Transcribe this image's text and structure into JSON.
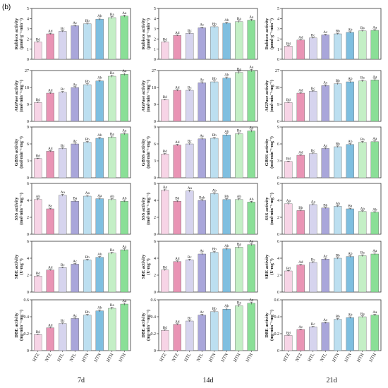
{
  "figure": {
    "panel_label": "(b)",
    "columns": [
      "7d",
      "14d",
      "21d"
    ],
    "treatments": [
      "HTZ",
      "NTZ",
      "HTL",
      "NTL",
      "HTN",
      "NTN",
      "HTH",
      "NTH"
    ],
    "colors": {
      "HTZ": "#f7d4e6",
      "NTZ": "#e994b5",
      "HTL": "#d6d4ee",
      "NTL": "#a9a6da",
      "HTN": "#bcdff0",
      "NTN": "#7fbfe0",
      "HTH": "#c4efc6",
      "NTH": "#8adf97",
      "axis": "#333333"
    }
  },
  "chart_data": [
    {
      "type": "bar",
      "row": 0,
      "col": 0,
      "ylabel": "Rubisco activity",
      "ylabel2": "(µmol·g⁻¹·min⁻¹)",
      "ylim": [
        0,
        5
      ],
      "yticks": [
        0,
        1,
        2,
        3,
        4,
        5
      ],
      "categories": [
        "HTZ",
        "NTZ",
        "HTL",
        "NTL",
        "HTN",
        "NTN",
        "HTH",
        "NTH"
      ],
      "values": [
        1.7,
        2.5,
        2.75,
        3.3,
        3.5,
        3.95,
        4.1,
        4.25
      ],
      "labels": [
        "Bd",
        "Ad",
        "Bc",
        "Ac",
        "Bb",
        "Ab",
        "Ba",
        "Aa"
      ]
    },
    {
      "type": "bar",
      "row": 0,
      "col": 1,
      "ylabel": "Rubisco activity",
      "ylabel2": "(µmol·g⁻¹·min⁻¹)",
      "ylim": [
        0,
        5
      ],
      "yticks": [
        0,
        1,
        2,
        3,
        4,
        5
      ],
      "categories": [
        "HTZ",
        "NTZ",
        "HTL",
        "NTL",
        "HTN",
        "NTN",
        "HTH",
        "NTH"
      ],
      "values": [
        1.7,
        2.35,
        2.55,
        3.1,
        3.2,
        3.55,
        3.7,
        3.85
      ],
      "labels": [
        "Bd",
        "Ad",
        "Bc",
        "Ac",
        "Bb",
        "Ab",
        "Ba",
        "Aa"
      ]
    },
    {
      "type": "bar",
      "row": 0,
      "col": 2,
      "ylabel": "Rubisco activity",
      "ylabel2": "(µmol·g⁻¹·min⁻¹)",
      "ylim": [
        0,
        5
      ],
      "yticks": [
        0,
        1,
        2,
        3,
        4,
        5
      ],
      "categories": [
        "HTZ",
        "NTZ",
        "HTL",
        "NTL",
        "HTN",
        "NTN",
        "HTH",
        "NTH"
      ],
      "values": [
        1.3,
        1.9,
        2.1,
        2.4,
        2.5,
        2.65,
        2.8,
        2.85
      ],
      "labels": [
        "Bd",
        "Ad",
        "Bc",
        "Ac",
        "Bb",
        "Ab",
        "Ba",
        "Aa"
      ]
    },
    {
      "type": "bar",
      "row": 1,
      "col": 0,
      "ylabel": "AGPase activity",
      "ylabel2": "(mol·min⁻¹·mg⁻¹)",
      "ylim": [
        0,
        27
      ],
      "yticks": [
        0,
        9,
        18,
        27
      ],
      "categories": [
        "HTZ",
        "NTZ",
        "HTL",
        "NTL",
        "HTN",
        "NTN",
        "HTH",
        "NTH"
      ],
      "values": [
        10,
        15,
        15.5,
        18,
        19.5,
        21.5,
        24,
        25
      ],
      "labels": [
        "Bd",
        "Ad",
        "Bc",
        "Ac",
        "Bb",
        "Ab",
        "Ba",
        "Aa"
      ]
    },
    {
      "type": "bar",
      "row": 1,
      "col": 1,
      "ylabel": "AGPase activity",
      "ylabel2": "(mol·min⁻¹·mg⁻¹)",
      "ylim": [
        0,
        27
      ],
      "yticks": [
        0,
        9,
        18,
        27
      ],
      "categories": [
        "HTZ",
        "NTZ",
        "HTL",
        "NTL",
        "HTN",
        "NTN",
        "HTH",
        "NTH"
      ],
      "values": [
        11.5,
        16.5,
        16.5,
        20.5,
        21,
        23,
        26,
        27
      ],
      "labels": [
        "Bd",
        "Ad",
        "Bc",
        "Ac",
        "Bb",
        "Ab",
        "Ba",
        "Aa"
      ]
    },
    {
      "type": "bar",
      "row": 1,
      "col": 2,
      "ylabel": "AGPase activity",
      "ylabel2": "(mol·min⁻¹·mg⁻¹)",
      "ylim": [
        0,
        27
      ],
      "yticks": [
        0,
        9,
        18,
        27
      ],
      "categories": [
        "HTZ",
        "NTZ",
        "HTL",
        "NTL",
        "HTN",
        "NTN",
        "HTH",
        "NTH"
      ],
      "values": [
        10,
        15,
        16,
        19,
        20,
        21,
        21.5,
        22
      ],
      "labels": [
        "Bd",
        "Ad",
        "Bc",
        "Ac",
        "Bb",
        "Ab",
        "Ba",
        "Aa"
      ]
    },
    {
      "type": "bar",
      "row": 2,
      "col": 0,
      "ylabel": "GBSS activity",
      "ylabel2": "(mol·min⁻¹·mg⁻¹)",
      "ylim": [
        0,
        9
      ],
      "yticks": [
        0,
        3,
        6,
        9
      ],
      "categories": [
        "HTZ",
        "NTZ",
        "HTL",
        "NTL",
        "HTN",
        "NTN",
        "HTH",
        "NTH"
      ],
      "values": [
        3.4,
        4.7,
        5.2,
        6.0,
        6.3,
        7.0,
        7.2,
        7.8
      ],
      "labels": [
        "Bd",
        "Ad",
        "Bc",
        "Ac",
        "Bb",
        "Ab",
        "Ba",
        "Aa"
      ]
    },
    {
      "type": "bar",
      "row": 2,
      "col": 1,
      "ylabel": "GBSS activity",
      "ylabel2": "(mol·min⁻¹·mg⁻¹)",
      "ylim": [
        0,
        9
      ],
      "yticks": [
        0,
        3,
        6,
        9
      ],
      "categories": [
        "HTZ",
        "NTZ",
        "HTL",
        "NTL",
        "HTN",
        "NTN",
        "HTH",
        "NTH"
      ],
      "values": [
        4.2,
        5.8,
        6.0,
        6.9,
        7.0,
        7.6,
        7.8,
        8.3
      ],
      "labels": [
        "Bd",
        "Ad",
        "Bc",
        "Ac",
        "Bb",
        "Ab",
        "Ba",
        "Aa"
      ]
    },
    {
      "type": "bar",
      "row": 2,
      "col": 2,
      "ylabel": "GBSS activity",
      "ylabel2": "(mol·min⁻¹·mg⁻¹)",
      "ylim": [
        0,
        9
      ],
      "yticks": [
        0,
        3,
        6,
        9
      ],
      "categories": [
        "HTZ",
        "NTZ",
        "HTL",
        "NTL",
        "HTN",
        "NTN",
        "HTH",
        "NTH"
      ],
      "values": [
        2.9,
        4.0,
        4.3,
        5.2,
        5.5,
        5.9,
        6.3,
        6.4
      ],
      "labels": [
        "Bd",
        "Ad",
        "Bc",
        "Ac",
        "Bb",
        "Ab",
        "Ba",
        "Aa"
      ]
    },
    {
      "type": "bar",
      "row": 3,
      "col": 0,
      "ylabel": "SSS activity",
      "ylabel2": "(mol·min⁻¹·mg⁻¹)",
      "ylim": [
        0,
        6
      ],
      "yticks": [
        0,
        2,
        4,
        6
      ],
      "categories": [
        "HTZ",
        "NTZ",
        "HTL",
        "NTL",
        "HTN",
        "NTN",
        "HTH",
        "NTH"
      ],
      "values": [
        4.1,
        3.0,
        4.6,
        3.9,
        4.5,
        4.2,
        4.1,
        3.9
      ],
      "labels": [
        "Ab",
        "Bc",
        "Aa",
        "Ba",
        "Aa",
        "Aa",
        "Ab",
        "Ab"
      ]
    },
    {
      "type": "bar",
      "row": 3,
      "col": 1,
      "ylabel": "SSS activity",
      "ylabel2": "(mol·min⁻¹·mg⁻¹)",
      "ylim": [
        0,
        6
      ],
      "yticks": [
        0,
        2,
        4,
        6
      ],
      "categories": [
        "HTZ",
        "NTZ",
        "HTL",
        "NTL",
        "HTN",
        "NTN",
        "HTH",
        "NTH"
      ],
      "values": [
        5.2,
        3.9,
        5.1,
        4.0,
        4.8,
        4.1,
        4.1,
        3.8
      ],
      "labels": [
        "Aa",
        "Bb",
        "Aa",
        "Bab",
        "Ab",
        "Bb",
        "Ab",
        "Ab"
      ]
    },
    {
      "type": "bar",
      "row": 3,
      "col": 2,
      "ylabel": "SSS activity",
      "ylabel2": "(mol·min⁻¹·mg⁻¹)",
      "ylim": [
        0,
        6
      ],
      "yticks": [
        0,
        2,
        4,
        6
      ],
      "categories": [
        "HTZ",
        "NTZ",
        "HTL",
        "NTL",
        "HTN",
        "NTN",
        "HTH",
        "NTH"
      ],
      "values": [
        3.6,
        2.8,
        3.5,
        3.1,
        3.3,
        3.0,
        2.7,
        2.6
      ],
      "labels": [
        "Aa",
        "Bb",
        "Aa",
        "Bb",
        "Ab",
        "Bb",
        "Ab",
        "Ab"
      ]
    },
    {
      "type": "bar",
      "row": 4,
      "col": 0,
      "ylabel": "SBE activity",
      "ylabel2": "(U·mg⁻¹)",
      "ylim": [
        0,
        6
      ],
      "yticks": [
        0,
        2,
        4,
        6
      ],
      "categories": [
        "HTZ",
        "NTZ",
        "HTL",
        "NTL",
        "HTN",
        "NTN",
        "HTH",
        "NTH"
      ],
      "values": [
        1.9,
        2.6,
        2.9,
        3.3,
        3.8,
        4.1,
        4.6,
        5.0
      ],
      "labels": [
        "Bd",
        "Ad",
        "Bc",
        "Ac",
        "Bb",
        "Ab",
        "Ba",
        "Aa"
      ]
    },
    {
      "type": "bar",
      "row": 4,
      "col": 1,
      "ylabel": "SBE activity",
      "ylabel2": "(U·mg⁻¹)",
      "ylim": [
        0,
        6
      ],
      "yticks": [
        0,
        2,
        4,
        6
      ],
      "categories": [
        "HTZ",
        "NTZ",
        "HTL",
        "NTL",
        "HTN",
        "NTN",
        "HTH",
        "NTH"
      ],
      "values": [
        2.6,
        3.6,
        3.8,
        4.5,
        4.7,
        5.1,
        5.3,
        5.6
      ],
      "labels": [
        "Bd",
        "Ad",
        "Bc",
        "Ac",
        "Bb",
        "Ab",
        "Ba",
        "Aa"
      ]
    },
    {
      "type": "bar",
      "row": 4,
      "col": 2,
      "ylabel": "SBE activity",
      "ylabel2": "(U·mg⁻¹)",
      "ylim": [
        0,
        6
      ],
      "yticks": [
        0,
        2,
        4,
        6
      ],
      "categories": [
        "HTZ",
        "NTZ",
        "HTL",
        "NTL",
        "HTN",
        "NTN",
        "HTH",
        "NTH"
      ],
      "values": [
        2.5,
        3.2,
        3.5,
        3.9,
        4.0,
        4.2,
        4.3,
        4.5
      ],
      "labels": [
        "Bd",
        "Ad",
        "Bc",
        "Ac",
        "Bb",
        "Ab",
        "Ba",
        "Aa"
      ]
    },
    {
      "type": "bar",
      "row": 5,
      "col": 0,
      "ylabel": "DBE activity",
      "ylabel2": "(mg·min⁻¹·mg⁻¹)",
      "ylim": [
        0,
        0.6
      ],
      "yticks": [
        0,
        0.2,
        0.4,
        0.6
      ],
      "categories": [
        "HTZ",
        "NTZ",
        "HTL",
        "NTL",
        "HTN",
        "NTN",
        "HTH",
        "NTH"
      ],
      "values": [
        0.19,
        0.27,
        0.32,
        0.38,
        0.42,
        0.47,
        0.5,
        0.55
      ],
      "labels": [
        "Bd",
        "Ad",
        "Bc",
        "Ac",
        "Bb",
        "Ab",
        "Ba",
        "Aa"
      ]
    },
    {
      "type": "bar",
      "row": 5,
      "col": 1,
      "ylabel": "DBE activity",
      "ylabel2": "(mg·min⁻¹·mg⁻¹)",
      "ylim": [
        0,
        0.6
      ],
      "yticks": [
        0,
        0.2,
        0.4,
        0.6
      ],
      "categories": [
        "HTZ",
        "NTZ",
        "HTL",
        "NTL",
        "HTN",
        "NTN",
        "HTH",
        "NTH"
      ],
      "values": [
        0.24,
        0.31,
        0.35,
        0.42,
        0.46,
        0.49,
        0.53,
        0.56
      ],
      "labels": [
        "Bd",
        "Ad",
        "Bc",
        "Ac",
        "Bb",
        "Ab",
        "Ba",
        "Aa"
      ]
    },
    {
      "type": "bar",
      "row": 5,
      "col": 2,
      "ylabel": "DBE activity",
      "ylabel2": "(mg·min⁻¹·mg⁻¹)",
      "ylim": [
        0,
        0.6
      ],
      "yticks": [
        0,
        0.2,
        0.4,
        0.6
      ],
      "categories": [
        "HTZ",
        "NTZ",
        "HTL",
        "NTL",
        "HTN",
        "NTN",
        "HTH",
        "NTH"
      ],
      "values": [
        0.18,
        0.25,
        0.28,
        0.33,
        0.37,
        0.39,
        0.4,
        0.42
      ],
      "labels": [
        "Bd",
        "Ac",
        "Bc",
        "Ac",
        "Bb",
        "Ab",
        "Ba",
        "Aa"
      ]
    }
  ]
}
